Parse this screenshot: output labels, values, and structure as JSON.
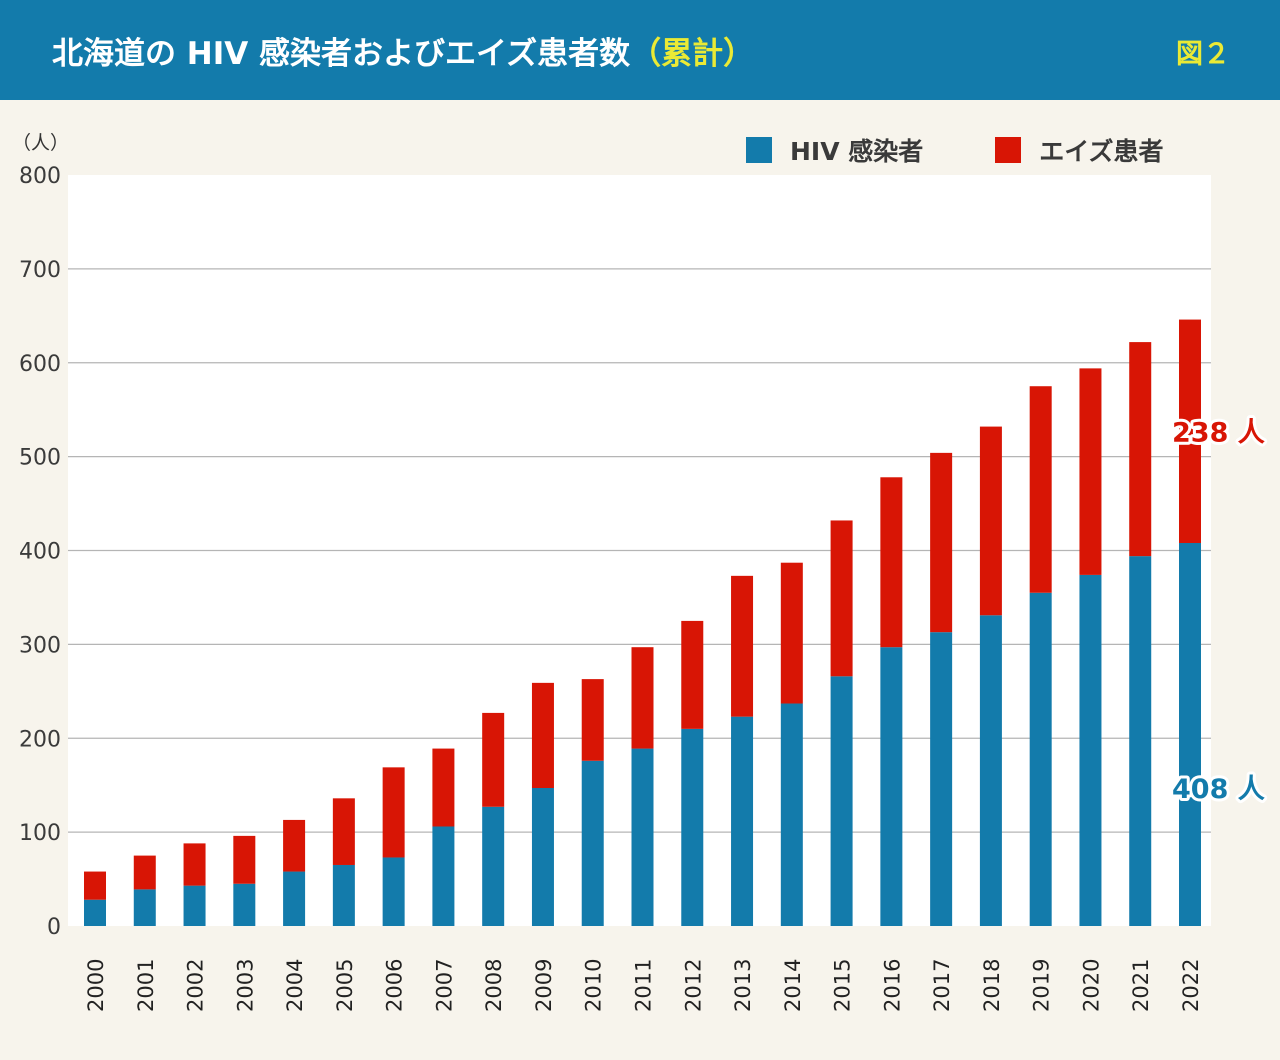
{
  "header": {
    "title_main": "北海道の HIV 感染者およびエイズ患者数",
    "title_accent": "（累計）",
    "figure_number": "図２"
  },
  "colors": {
    "header_bg": "#137bab",
    "hiv": "#137bab",
    "aids": "#d81505",
    "accent_yellow": "#eaea35",
    "background": "#f7f4ec"
  },
  "chart_data": {
    "type": "bar",
    "stacked": true,
    "title": "北海道の HIV 感染者およびエイズ患者数（累計）",
    "xlabel": "",
    "ylabel": "（人）",
    "ylim": [
      0,
      800
    ],
    "yticks": [
      0,
      100,
      200,
      300,
      400,
      500,
      600,
      700,
      800
    ],
    "grid": true,
    "legend_position": "top-right",
    "categories": [
      "2000",
      "2001",
      "2002",
      "2003",
      "2004",
      "2005",
      "2006",
      "2007",
      "2008",
      "2009",
      "2010",
      "2011",
      "2012",
      "2013",
      "2014",
      "2015",
      "2016",
      "2017",
      "2018",
      "2019",
      "2020",
      "2021",
      "2022"
    ],
    "series": [
      {
        "name": "HIV 感染者",
        "color": "#137bab",
        "values": [
          28,
          39,
          43,
          45,
          58,
          65,
          73,
          106,
          127,
          147,
          176,
          189,
          210,
          223,
          237,
          266,
          297,
          313,
          331,
          355,
          374,
          394,
          408
        ]
      },
      {
        "name": "エイズ患者",
        "color": "#d81505",
        "values": [
          30,
          36,
          45,
          51,
          55,
          71,
          96,
          83,
          100,
          112,
          87,
          108,
          115,
          150,
          150,
          166,
          181,
          191,
          201,
          220,
          220,
          228,
          238
        ]
      }
    ],
    "annotations": [
      {
        "series": "エイズ患者",
        "category": "2022",
        "text": "238 人",
        "color": "#d81505"
      },
      {
        "series": "HIV 感染者",
        "category": "2022",
        "text": "408 人",
        "color": "#137bab"
      }
    ]
  }
}
